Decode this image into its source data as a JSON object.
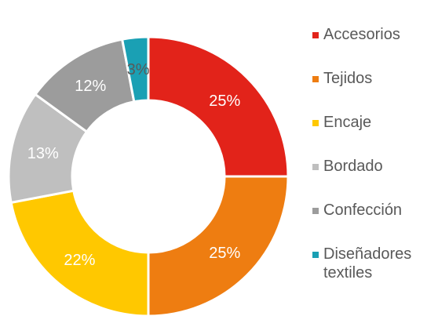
{
  "chart_data": {
    "type": "pie",
    "variant": "donut",
    "categories": [
      "Accesorios",
      "Tejidos",
      "Encaje",
      "Bordado",
      "Confección",
      "Diseñadores textiles"
    ],
    "values": [
      25,
      25,
      22,
      13,
      12,
      3
    ],
    "data_labels": [
      "25%",
      "25%",
      "22%",
      "13%",
      "12%",
      "3%"
    ],
    "colors": [
      "#E2231A",
      "#EE7D11",
      "#FFC800",
      "#BFBFBF",
      "#9C9C9C",
      "#1AA0B4"
    ],
    "label_colors": [
      "#ffffff",
      "#ffffff",
      "#ffffff",
      "#ffffff",
      "#ffffff",
      "#595959"
    ],
    "legend_position": "right"
  }
}
